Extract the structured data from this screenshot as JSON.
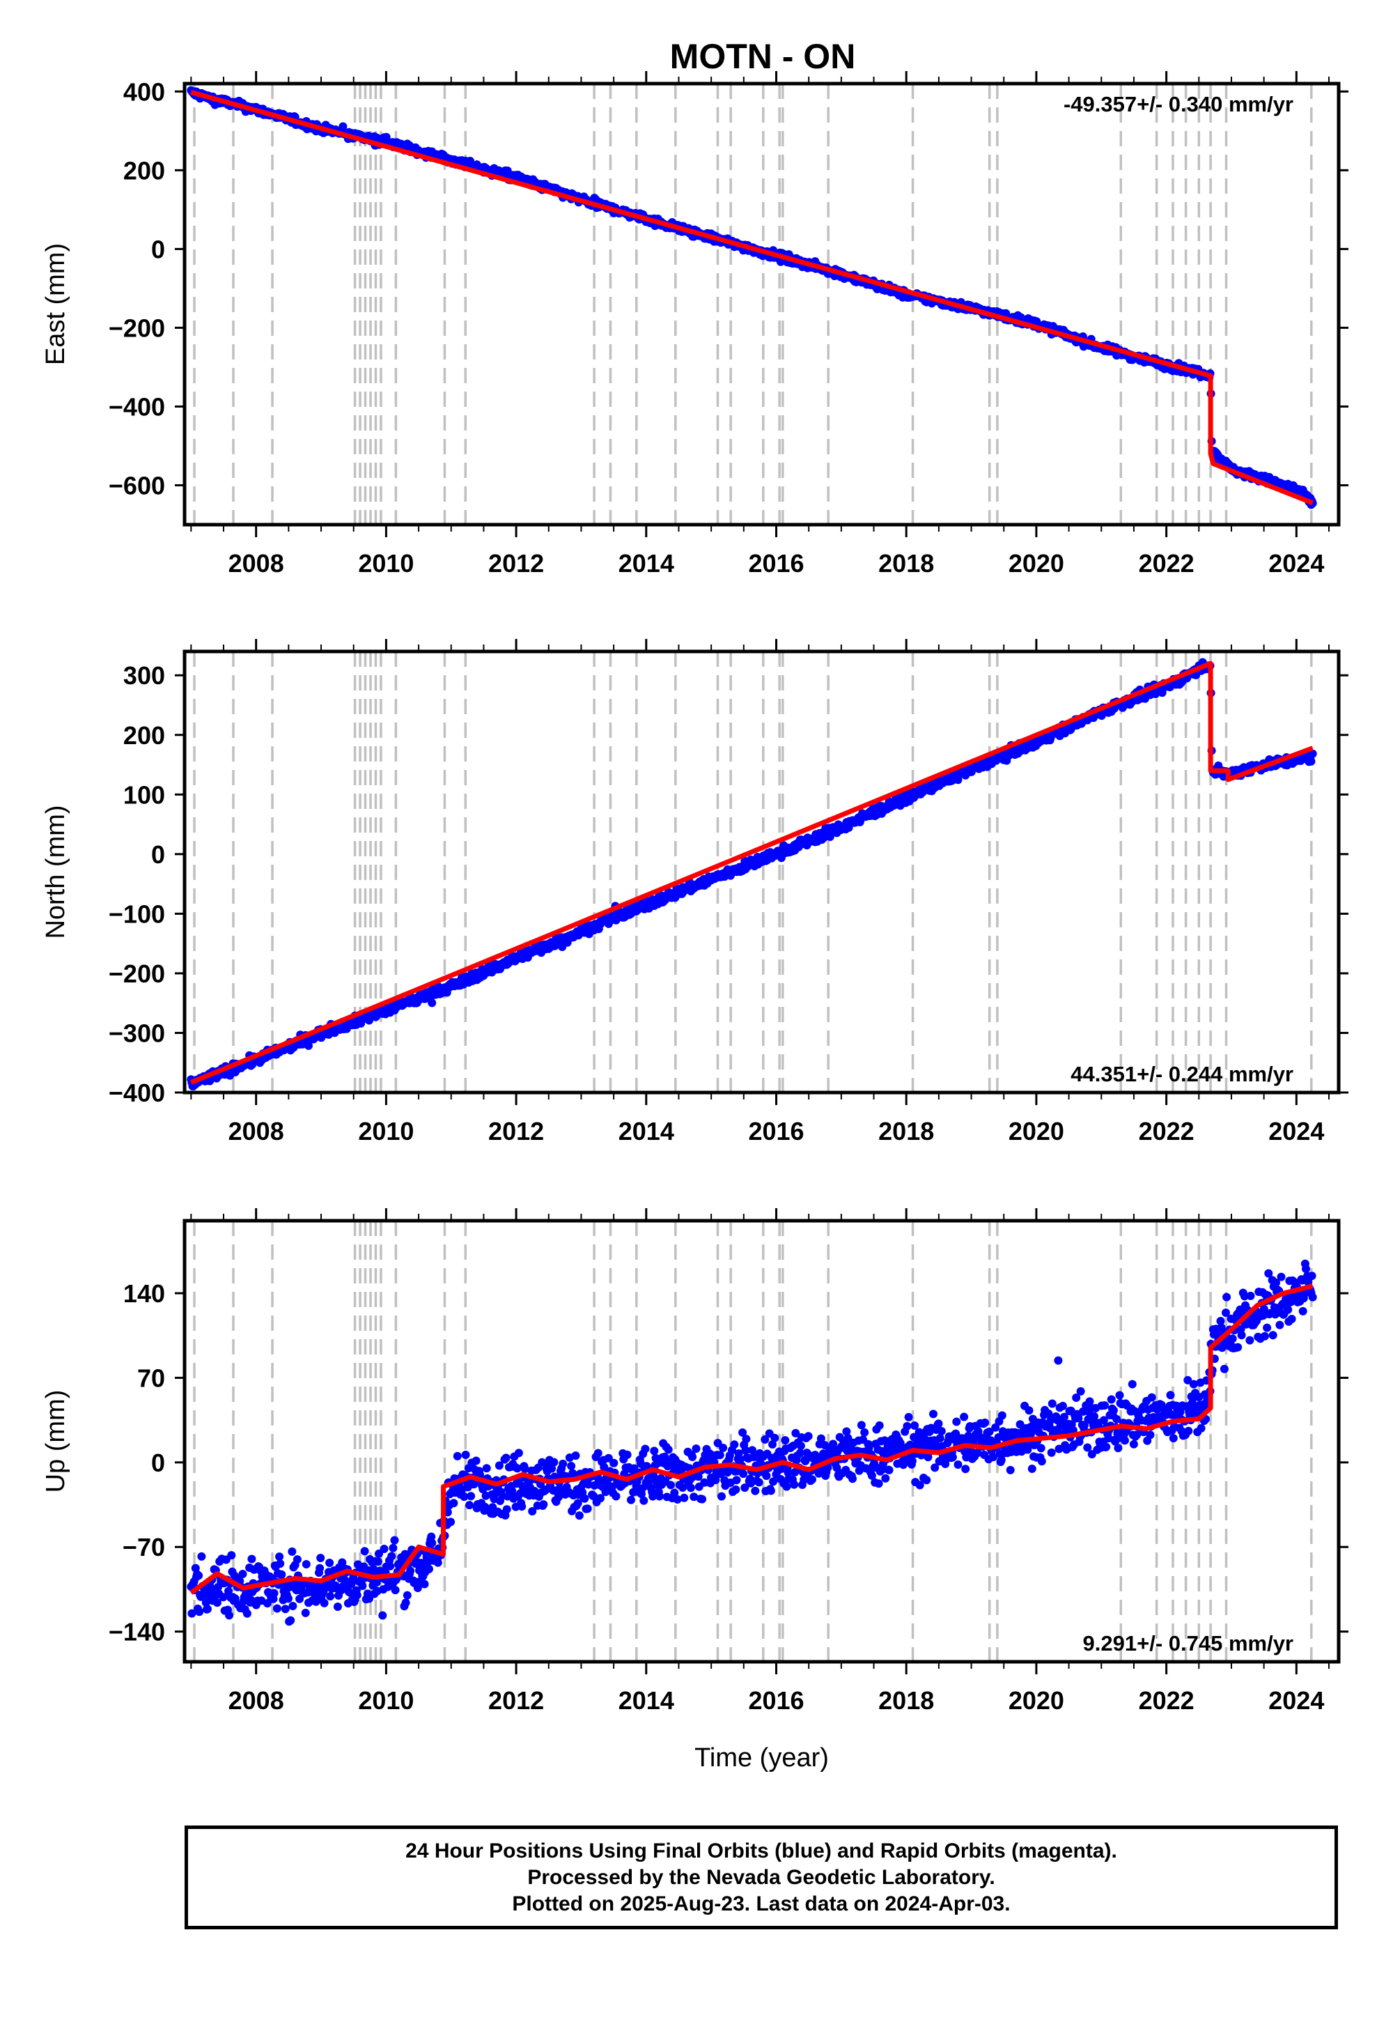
{
  "figure_title": "MOTN - ON",
  "chart_data": [
    {
      "type": "scatter",
      "panel": "east",
      "ylabel": "East (mm)",
      "xlabel": "",
      "xlim": [
        2006.9,
        2024.65
      ],
      "ylim": [
        -700,
        420
      ],
      "yticks": [
        400,
        200,
        0,
        -200,
        -400,
        -600
      ],
      "ytick_labels": [
        "400",
        "200",
        "0",
        "−200",
        "−400",
        "−600"
      ],
      "xticks": [
        2008,
        2010,
        2012,
        2014,
        2016,
        2018,
        2020,
        2022,
        2024
      ],
      "xtick_labels": [
        "2008",
        "2010",
        "2012",
        "2014",
        "2016",
        "2018",
        "2020",
        "2022",
        "2024"
      ],
      "rate_text": "-49.357+/- 0.340 mm/yr",
      "rate_position": "top-right",
      "points_color": "#0000ff",
      "model_color": "#ff0000",
      "series": [
        {
          "x": [
            2007.0,
            2007.3,
            2008.0,
            2009.0,
            2010.0,
            2011.0,
            2012.0,
            2013.0,
            2014.0,
            2015.0,
            2016.0,
            2017.0,
            2018.0,
            2019.0,
            2020.0,
            2021.0,
            2022.0,
            2022.68,
            2022.7,
            2023.0,
            2024.0,
            2024.25
          ],
          "y": [
            398,
            382,
            354,
            305,
            272,
            225,
            181,
            125,
            77,
            29,
            -17,
            -63,
            -116,
            -150,
            -191,
            -250,
            -295,
            -320,
            -510,
            -560,
            -610,
            -645
          ]
        }
      ],
      "model": {
        "x": [
          2007.0,
          2022.68,
          2022.68,
          2022.72,
          2024.25
        ],
        "y": [
          398,
          -322,
          -520,
          -545,
          -645
        ]
      },
      "steps": [
        2007.05,
        2007.65,
        2008.25,
        2009.52,
        2009.6,
        2009.68,
        2009.76,
        2009.84,
        2009.92,
        2010.15,
        2010.9,
        2011.22,
        2013.2,
        2013.45,
        2013.85,
        2014.45,
        2015.1,
        2015.3,
        2015.8,
        2016.05,
        2016.1,
        2016.8,
        2018.1,
        2019.28,
        2019.4,
        2021.3,
        2021.85,
        2022.1,
        2022.3,
        2022.5,
        2022.68,
        2022.92,
        2024.23
      ]
    },
    {
      "type": "scatter",
      "panel": "north",
      "ylabel": "North (mm)",
      "xlabel": "",
      "xlim": [
        2006.9,
        2024.65
      ],
      "ylim": [
        -400,
        340
      ],
      "yticks": [
        300,
        200,
        100,
        0,
        -100,
        -200,
        -300,
        -400
      ],
      "ytick_labels": [
        "300",
        "200",
        "100",
        "0",
        "−100",
        "−200",
        "−300",
        "−400"
      ],
      "xticks": [
        2008,
        2010,
        2012,
        2014,
        2016,
        2018,
        2020,
        2022,
        2024
      ],
      "xtick_labels": [
        "2008",
        "2010",
        "2012",
        "2014",
        "2016",
        "2018",
        "2020",
        "2022",
        "2024"
      ],
      "rate_text": "44.351+/- 0.244 mm/yr",
      "rate_position": "bottom-right",
      "points_color": "#0000ff",
      "model_color": "#ff0000",
      "series": [
        {
          "x": [
            2007.0,
            2008.0,
            2009.0,
            2010.0,
            2011.0,
            2012.0,
            2013.0,
            2014.0,
            2015.0,
            2016.0,
            2017.0,
            2018.0,
            2019.0,
            2020.0,
            2021.0,
            2022.0,
            2022.68,
            2022.7,
            2023.0,
            2023.5,
            2024.0,
            2024.25
          ],
          "y": [
            -385,
            -345,
            -300,
            -262,
            -222,
            -174,
            -130,
            -85,
            -42,
            0,
            45,
            95,
            143,
            189,
            240,
            282,
            320,
            140,
            135,
            150,
            158,
            163
          ]
        }
      ],
      "model": {
        "x": [
          2007.0,
          2022.68,
          2022.68,
          2022.95,
          2022.95,
          2024.25
        ],
        "y": [
          -383,
          320,
          140,
          140,
          125,
          178
        ]
      },
      "steps": [
        2007.05,
        2007.65,
        2008.25,
        2009.52,
        2009.6,
        2009.68,
        2009.76,
        2009.84,
        2009.92,
        2010.15,
        2010.9,
        2011.22,
        2013.2,
        2013.45,
        2013.85,
        2014.45,
        2015.1,
        2015.3,
        2015.8,
        2016.05,
        2016.1,
        2016.8,
        2018.1,
        2019.28,
        2019.4,
        2021.3,
        2021.85,
        2022.1,
        2022.3,
        2022.5,
        2022.68,
        2022.92,
        2024.23
      ]
    },
    {
      "type": "scatter",
      "panel": "up",
      "ylabel": "Up (mm)",
      "xlabel": "Time (year)",
      "xlim": [
        2006.9,
        2024.65
      ],
      "ylim": [
        -165,
        200
      ],
      "yticks": [
        140,
        70,
        0,
        -70,
        -140
      ],
      "ytick_labels": [
        "140",
        "70",
        "0",
        "−70",
        "−140"
      ],
      "xticks": [
        2008,
        2010,
        2012,
        2014,
        2016,
        2018,
        2020,
        2022,
        2024
      ],
      "xtick_labels": [
        "2008",
        "2010",
        "2012",
        "2014",
        "2016",
        "2018",
        "2020",
        "2022",
        "2024"
      ],
      "rate_text": "9.291+/- 0.745 mm/yr",
      "rate_position": "bottom-right",
      "points_color": "#0000ff",
      "model_color": "#ff0000",
      "series": [
        {
          "x": [
            2007.0,
            2008.0,
            2009.0,
            2010.0,
            2010.8,
            2011.0,
            2012.0,
            2013.0,
            2014.0,
            2015.0,
            2016.0,
            2017.0,
            2018.0,
            2019.0,
            2020.0,
            2021.0,
            2022.0,
            2022.6,
            2022.75,
            2023.0,
            2024.0,
            2024.25
          ],
          "y": [
            -103,
            -102,
            -100,
            -93,
            -80,
            -20,
            -16,
            -18,
            -12,
            -6,
            0,
            3,
            10,
            16,
            24,
            32,
            38,
            45,
            100,
            112,
            140,
            145
          ]
        }
      ],
      "model": {
        "x": [
          2007.0,
          2007.4,
          2007.8,
          2008.2,
          2008.6,
          2009.0,
          2009.4,
          2009.8,
          2010.2,
          2010.5,
          2010.88,
          2010.88,
          2011.3,
          2011.7,
          2012.1,
          2012.5,
          2012.9,
          2013.3,
          2013.7,
          2014.1,
          2014.5,
          2014.9,
          2015.3,
          2015.7,
          2016.1,
          2016.5,
          2016.9,
          2017.3,
          2017.7,
          2018.1,
          2018.5,
          2018.9,
          2019.3,
          2019.7,
          2020.1,
          2020.5,
          2020.9,
          2021.3,
          2021.7,
          2022.1,
          2022.5,
          2022.68,
          2022.68,
          2023.0,
          2023.4,
          2023.8,
          2024.25
        ],
        "y": [
          -108,
          -92,
          -104,
          -100,
          -96,
          -98,
          -90,
          -95,
          -93,
          -70,
          -76,
          -20,
          -12,
          -18,
          -10,
          -16,
          -14,
          -8,
          -14,
          -6,
          -12,
          -4,
          -2,
          -6,
          0,
          -6,
          3,
          6,
          2,
          10,
          8,
          14,
          12,
          18,
          20,
          22,
          26,
          30,
          28,
          34,
          36,
          45,
          95,
          110,
          130,
          140,
          146
        ]
      },
      "steps": [
        2007.05,
        2007.65,
        2008.25,
        2009.52,
        2009.6,
        2009.68,
        2009.76,
        2009.84,
        2009.92,
        2010.15,
        2010.9,
        2011.22,
        2013.2,
        2013.45,
        2013.85,
        2014.45,
        2015.1,
        2015.3,
        2015.8,
        2016.05,
        2016.1,
        2016.8,
        2018.1,
        2019.28,
        2019.4,
        2021.3,
        2021.85,
        2022.1,
        2022.3,
        2022.5,
        2022.68,
        2022.92,
        2024.23
      ]
    }
  ],
  "footer": {
    "line1": "24 Hour Positions Using Final Orbits (blue) and Rapid Orbits (magenta).",
    "line2": "Processed by the Nevada Geodetic Laboratory.",
    "line3": "Plotted on 2025-Aug-23. Last data on 2024-Apr-03."
  }
}
